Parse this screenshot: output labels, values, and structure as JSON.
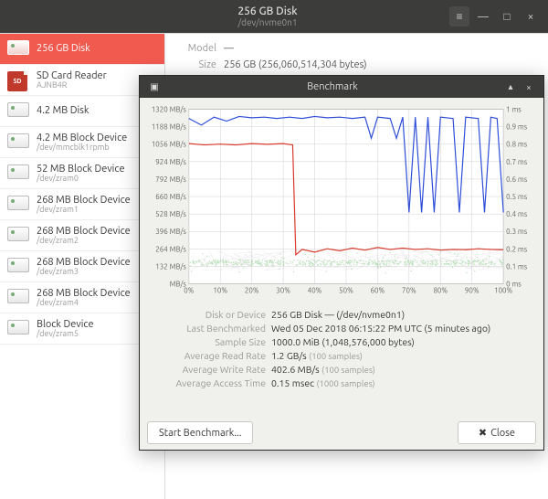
{
  "window": {
    "title": "256 GB Disk",
    "subtitle": "/dev/nvme0n1"
  },
  "sidebar": {
    "devices": [
      {
        "name": "256 GB Disk",
        "sub": "",
        "type": "drive",
        "active": true
      },
      {
        "name": "SD Card Reader",
        "sub": "AJNB4R",
        "type": "sd"
      },
      {
        "name": "4.2 MB Disk",
        "sub": "",
        "type": "drive"
      },
      {
        "name": "4.2 MB Block Device",
        "sub": "/dev/mmcblk1rpmb",
        "type": "drive"
      },
      {
        "name": "52 MB Block Device",
        "sub": "/dev/zram0",
        "type": "drive"
      },
      {
        "name": "268 MB Block Device",
        "sub": "/dev/zram1",
        "type": "drive"
      },
      {
        "name": "268 MB Block Device",
        "sub": "/dev/zram2",
        "type": "drive"
      },
      {
        "name": "268 MB Block Device",
        "sub": "/dev/zram3",
        "type": "drive"
      },
      {
        "name": "268 MB Block Device",
        "sub": "/dev/zram4",
        "type": "drive"
      },
      {
        "name": "Block Device",
        "sub": "/dev/zram5",
        "type": "drive"
      }
    ]
  },
  "detail": {
    "model_label": "Model",
    "model_value": "—",
    "size_label": "Size",
    "size_value": "256 GB (256,060,514,304 bytes)"
  },
  "dialog": {
    "title": "Benchmark",
    "chart": {
      "yaxis_left": {
        "unit": "MB/s",
        "ticks": [
          0,
          132,
          264,
          396,
          528,
          660,
          792,
          924,
          1056,
          1188,
          1320
        ],
        "tick_labels": [
          "MB/s",
          "132 MB/s",
          "264 MB/s",
          "396 MB/s",
          "528 MB/s",
          "660 MB/s",
          "792 MB/s",
          "924 MB/s",
          "1056 MB/s",
          "1188 MB/s",
          "1320 MB/s"
        ],
        "max": 1320
      },
      "yaxis_right": {
        "unit": "ms",
        "ticks": [
          0,
          0.1,
          0.2,
          0.3,
          0.4,
          0.5,
          0.6,
          0.7,
          0.8,
          0.9,
          1
        ],
        "tick_labels": [
          "0 ms",
          "0.1 ms",
          "0.2 ms",
          "0.3 ms",
          "0.4 ms",
          "0.5 ms",
          "0.6 ms",
          "0.7 ms",
          "0.8 ms",
          "0.9 ms",
          "1 ms"
        ],
        "max": 1
      },
      "xaxis": {
        "ticks": [
          0,
          10,
          20,
          30,
          40,
          50,
          60,
          70,
          80,
          90,
          100
        ],
        "tick_labels": [
          "0%",
          "10%",
          "20%",
          "30%",
          "40%",
          "50%",
          "60%",
          "70%",
          "80%",
          "90%",
          "100%"
        ]
      },
      "read_series": {
        "color": "#2e4dd8",
        "width": 1.2,
        "points": [
          [
            0,
            1250
          ],
          [
            4,
            1200
          ],
          [
            8,
            1260
          ],
          [
            12,
            1230
          ],
          [
            16,
            1265
          ],
          [
            20,
            1255
          ],
          [
            24,
            1260
          ],
          [
            28,
            1250
          ],
          [
            32,
            1260
          ],
          [
            36,
            1250
          ],
          [
            40,
            1265
          ],
          [
            44,
            1255
          ],
          [
            48,
            1260
          ],
          [
            52,
            1250
          ],
          [
            56,
            1260
          ],
          [
            58,
            1100
          ],
          [
            60,
            1260
          ],
          [
            64,
            1250
          ],
          [
            66,
            1100
          ],
          [
            68,
            1260
          ],
          [
            70,
            540
          ],
          [
            72,
            1260
          ],
          [
            74,
            540
          ],
          [
            76,
            1260
          ],
          [
            78,
            540
          ],
          [
            80,
            1260
          ],
          [
            84,
            1250
          ],
          [
            86,
            540
          ],
          [
            88,
            1260
          ],
          [
            92,
            1250
          ],
          [
            94,
            540
          ],
          [
            96,
            1260
          ],
          [
            98,
            1250
          ],
          [
            100,
            540
          ]
        ]
      },
      "write_series": {
        "color": "#d83b2e",
        "width": 1.2,
        "points": [
          [
            0,
            1060
          ],
          [
            5,
            1050
          ],
          [
            10,
            1056
          ],
          [
            15,
            1050
          ],
          [
            20,
            1060
          ],
          [
            25,
            1055
          ],
          [
            30,
            1060
          ],
          [
            33,
            1050
          ],
          [
            34,
            220
          ],
          [
            36,
            260
          ],
          [
            40,
            240
          ],
          [
            44,
            265
          ],
          [
            48,
            250
          ],
          [
            52,
            270
          ],
          [
            56,
            255
          ],
          [
            60,
            275
          ],
          [
            64,
            260
          ],
          [
            68,
            270
          ],
          [
            72,
            260
          ],
          [
            76,
            265
          ],
          [
            80,
            255
          ],
          [
            84,
            260
          ],
          [
            88,
            258
          ],
          [
            92,
            265
          ],
          [
            96,
            260
          ],
          [
            100,
            258
          ]
        ]
      },
      "access_series": {
        "color": "#3da83d",
        "opacity": 0.35,
        "band_low": 100,
        "band_high": 260,
        "scatter": true
      },
      "grid_color": "#d0d0d0",
      "background": "#ffffff",
      "font_size": 8
    },
    "stats": [
      {
        "label": "Disk or Device",
        "value": "256 GB Disk —  (/dev/nvme0n1)"
      },
      {
        "label": "Last Benchmarked",
        "value": "Wed 05 Dec 2018 06:15:22 PM UTC (5 minutes ago)"
      },
      {
        "label": "Sample Size",
        "value": "1000.0 MiB (1,048,576,000 bytes)"
      },
      {
        "label": "Average Read Rate",
        "value": "1.2 GB/s",
        "sub": "(100 samples)"
      },
      {
        "label": "Average Write Rate",
        "value": "402.6 MB/s",
        "sub": "(100 samples)"
      },
      {
        "label": "Average Access Time",
        "value": "0.15 msec",
        "sub": "(1000 samples)"
      }
    ],
    "buttons": {
      "start": "Start Benchmark...",
      "close": "Close"
    }
  }
}
